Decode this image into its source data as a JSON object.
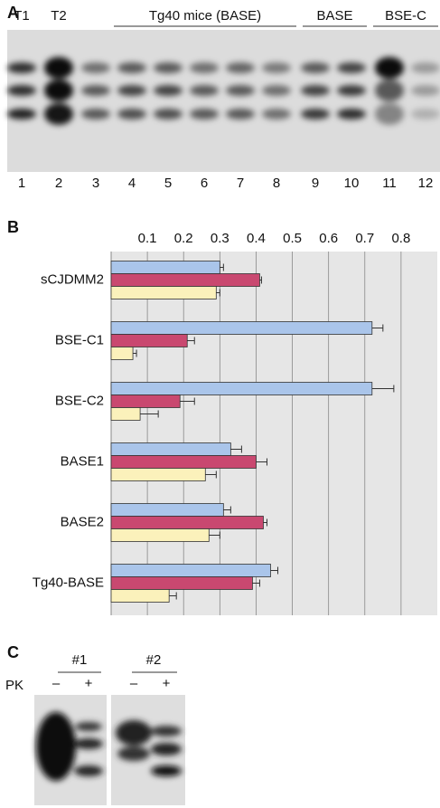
{
  "panel_a": {
    "label": "A",
    "group_labels": [
      "T1",
      "T2",
      "Tg40 mice (BASE)",
      "BASE",
      "BSE-C"
    ],
    "lane_numbers": [
      "1",
      "2",
      "3",
      "4",
      "5",
      "6",
      "7",
      "8",
      "9",
      "10",
      "11",
      "12"
    ]
  },
  "chart_data": {
    "type": "bar",
    "orientation": "horizontal",
    "panel_label": "B",
    "categories": [
      "sCJDMM2",
      "BSE-C1",
      "BSE-C2",
      "BASE1",
      "BASE2",
      "Tg40-BASE"
    ],
    "series": [
      {
        "color": "#aac5ea",
        "values": [
          0.3,
          0.72,
          0.72,
          0.33,
          0.31,
          0.44
        ],
        "errors": [
          0.01,
          0.03,
          0.06,
          0.03,
          0.02,
          0.02
        ]
      },
      {
        "color": "#c94870",
        "values": [
          0.41,
          0.21,
          0.19,
          0.4,
          0.42,
          0.39
        ],
        "errors": [
          0.005,
          0.02,
          0.04,
          0.03,
          0.01,
          0.02
        ]
      },
      {
        "color": "#fbf1bb",
        "values": [
          0.29,
          0.06,
          0.08,
          0.26,
          0.27,
          0.16
        ],
        "errors": [
          0.01,
          0.01,
          0.05,
          0.03,
          0.03,
          0.02
        ]
      }
    ],
    "xlim": [
      0,
      0.9
    ],
    "xticks": [
      0.1,
      0.2,
      0.3,
      0.4,
      0.5,
      0.6,
      0.7,
      0.8
    ],
    "grid": true
  },
  "panel_c": {
    "label": "C",
    "samples": [
      "#1",
      "#2"
    ],
    "row_label": "PK",
    "treatments": [
      "–",
      "+",
      "–",
      "+"
    ]
  }
}
